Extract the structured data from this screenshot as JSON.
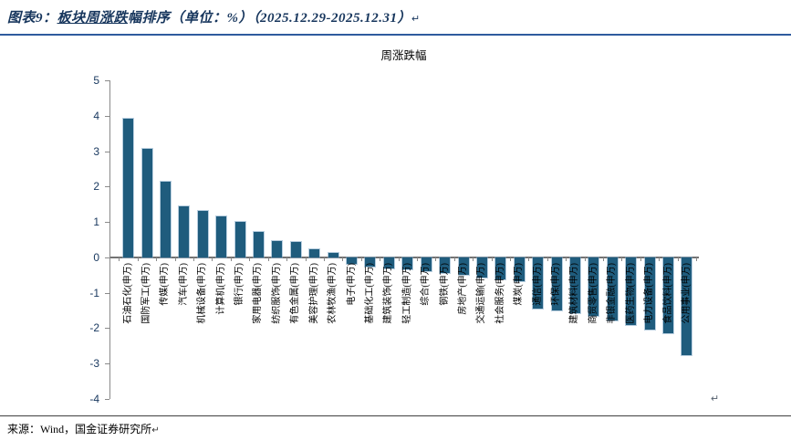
{
  "header": {
    "prefix": "图表9：",
    "underlined": "板块周涨跌",
    "rest": "幅排序（单位：%）（2025.12.29-2025.12.31）",
    "para_mark": "↵"
  },
  "chart_data": {
    "type": "bar",
    "title": "周涨跌幅",
    "categories": [
      "石油石化(申万)",
      "国防军工(申万)",
      "传媒(申万)",
      "汽车(申万)",
      "机械设备(申万)",
      "计算机(申万)",
      "银行(申万)",
      "家用电器(申万)",
      "纺织服饰(申万)",
      "有色金属(申万)",
      "美容护理(申万)",
      "农林牧渔(申万)",
      "电子(申万)",
      "基础化工(申万)",
      "建筑装饰(申万)",
      "轻工制造(申万)",
      "综合(申万)",
      "钢铁(申万)",
      "房地产(申万)",
      "交通运输(申万)",
      "社会服务(申万)",
      "煤炭(申万)",
      "通信(申万)",
      "环保(申万)",
      "建筑材料(申万)",
      "商贸零售(申万)",
      "非银金融(申万)",
      "医药生物(申万)",
      "电力设备(申万)",
      "食品饮料(申万)",
      "公用事业(申万)"
    ],
    "values": [
      3.92,
      3.07,
      2.13,
      1.45,
      1.32,
      1.17,
      1.01,
      0.71,
      0.45,
      0.43,
      0.24,
      0.13,
      -0.18,
      -0.25,
      -0.3,
      -0.35,
      -0.4,
      -0.45,
      -0.5,
      -0.56,
      -0.62,
      -0.68,
      -1.45,
      -1.5,
      -1.58,
      -1.66,
      -1.77,
      -1.92,
      -2.03,
      -2.15,
      -2.76
    ],
    "xlabel": "",
    "ylabel": "",
    "ylim": [
      -4,
      5
    ],
    "ytick_step": 1,
    "grid": false,
    "legend": "none"
  },
  "chart_corner_mark": "↵",
  "footer": {
    "source": "来源：Wind，国金证券研究所",
    "para_mark": "↵"
  },
  "colors": {
    "bar": "#1F5C7D",
    "title_text": "#17365D",
    "title_rule": "#2E5B9E",
    "axis": "#8a8a8a",
    "tick_label": "#17375E"
  }
}
